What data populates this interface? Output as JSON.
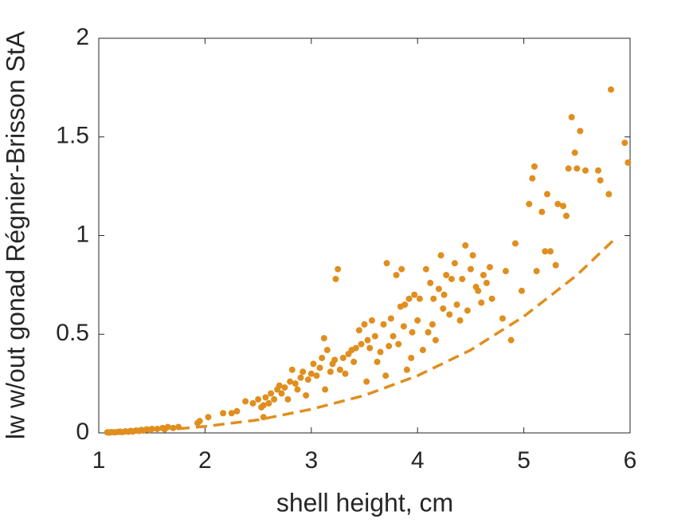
{
  "chart_data": {
    "type": "scatter",
    "xlabel": "shell height, cm",
    "ylabel": "lw w/out gonad Régnier-Brisson StA",
    "xlim": [
      1,
      6
    ],
    "ylim": [
      0,
      2
    ],
    "xticks": [
      1,
      2,
      3,
      4,
      5,
      6
    ],
    "yticks": [
      0,
      0.5,
      1,
      1.5,
      2
    ],
    "series": [
      {
        "color": "#e08e1e",
        "mode": "markers",
        "x": [
          1.08,
          1.1,
          1.12,
          1.15,
          1.18,
          1.2,
          1.22,
          1.25,
          1.28,
          1.3,
          1.32,
          1.35,
          1.38,
          1.4,
          1.42,
          1.45,
          1.48,
          1.5,
          1.55,
          1.6,
          1.62,
          1.65,
          1.7,
          1.75,
          1.93,
          1.95,
          2.03,
          2.17,
          2.25,
          2.3,
          2.38,
          2.45,
          2.5,
          2.53,
          2.55,
          2.55,
          2.57,
          2.6,
          2.62,
          2.65,
          2.68,
          2.7,
          2.72,
          2.75,
          2.78,
          2.8,
          2.82,
          2.85,
          2.87,
          2.9,
          2.92,
          2.95,
          2.97,
          3.0,
          3.02,
          3.05,
          3.08,
          3.1,
          3.12,
          3.13,
          3.15,
          3.18,
          3.2,
          3.22,
          3.23,
          3.25,
          3.27,
          3.3,
          3.32,
          3.35,
          3.38,
          3.4,
          3.42,
          3.45,
          3.47,
          3.5,
          3.52,
          3.53,
          3.55,
          3.57,
          3.6,
          3.62,
          3.65,
          3.68,
          3.7,
          3.71,
          3.73,
          3.75,
          3.77,
          3.8,
          3.82,
          3.84,
          3.85,
          3.87,
          3.88,
          3.9,
          3.92,
          3.94,
          3.95,
          3.97,
          4.0,
          4.02,
          4.05,
          4.08,
          4.1,
          4.12,
          4.14,
          4.15,
          4.17,
          4.2,
          4.22,
          4.24,
          4.25,
          4.27,
          4.3,
          4.32,
          4.35,
          4.37,
          4.4,
          4.42,
          4.45,
          4.47,
          4.5,
          4.52,
          4.55,
          4.57,
          4.6,
          4.62,
          4.65,
          4.68,
          4.7,
          4.8,
          4.83,
          4.88,
          4.92,
          4.98,
          5.05,
          5.08,
          5.1,
          5.12,
          5.17,
          5.2,
          5.22,
          5.25,
          5.3,
          5.32,
          5.37,
          5.4,
          5.42,
          5.45,
          5.48,
          5.5,
          5.53,
          5.58,
          5.7,
          5.72,
          5.8,
          5.82,
          5.95,
          5.98
        ],
        "values": [
          0.003,
          0.002,
          0.004,
          0.003,
          0.005,
          0.006,
          0.004,
          0.008,
          0.006,
          0.01,
          0.007,
          0.012,
          0.01,
          0.015,
          0.012,
          0.018,
          0.015,
          0.02,
          0.02,
          0.025,
          0.018,
          0.03,
          0.025,
          0.03,
          0.05,
          0.06,
          0.08,
          0.1,
          0.1,
          0.11,
          0.16,
          0.15,
          0.17,
          0.13,
          0.14,
          0.08,
          0.18,
          0.15,
          0.2,
          0.17,
          0.22,
          0.24,
          0.2,
          0.23,
          0.17,
          0.26,
          0.32,
          0.25,
          0.22,
          0.28,
          0.31,
          0.19,
          0.27,
          0.3,
          0.35,
          0.29,
          0.33,
          0.38,
          0.48,
          0.22,
          0.42,
          0.31,
          0.35,
          0.37,
          0.78,
          0.83,
          0.32,
          0.38,
          0.3,
          0.4,
          0.42,
          0.36,
          0.43,
          0.52,
          0.45,
          0.55,
          0.26,
          0.47,
          0.43,
          0.57,
          0.49,
          0.36,
          0.41,
          0.55,
          0.29,
          0.86,
          0.44,
          0.58,
          0.49,
          0.8,
          0.45,
          0.64,
          0.83,
          0.54,
          0.65,
          0.32,
          0.68,
          0.38,
          0.51,
          0.7,
          0.57,
          0.68,
          0.42,
          0.83,
          0.51,
          0.76,
          0.55,
          0.68,
          0.47,
          0.73,
          0.9,
          0.63,
          0.7,
          0.8,
          0.6,
          0.78,
          0.86,
          0.65,
          0.57,
          0.78,
          0.95,
          0.62,
          0.83,
          0.9,
          0.74,
          0.72,
          0.66,
          0.8,
          0.76,
          0.84,
          0.68,
          0.58,
          0.82,
          0.47,
          0.96,
          0.72,
          1.16,
          1.29,
          1.35,
          0.82,
          1.12,
          0.92,
          1.21,
          0.92,
          0.85,
          1.16,
          1.15,
          1.1,
          1.34,
          1.6,
          1.42,
          1.34,
          1.53,
          1.33,
          1.33,
          1.28,
          1.21,
          1.74,
          1.47,
          1.37
        ]
      },
      {
        "color": "#e08e1e",
        "mode": "dashed-line",
        "x": [
          1.75,
          2,
          2.5,
          3,
          3.5,
          4,
          4.5,
          5,
          5.5,
          5.85
        ],
        "values": [
          0.021,
          0.033,
          0.066,
          0.12,
          0.19,
          0.29,
          0.42,
          0.59,
          0.8,
          0.98
        ]
      }
    ]
  }
}
